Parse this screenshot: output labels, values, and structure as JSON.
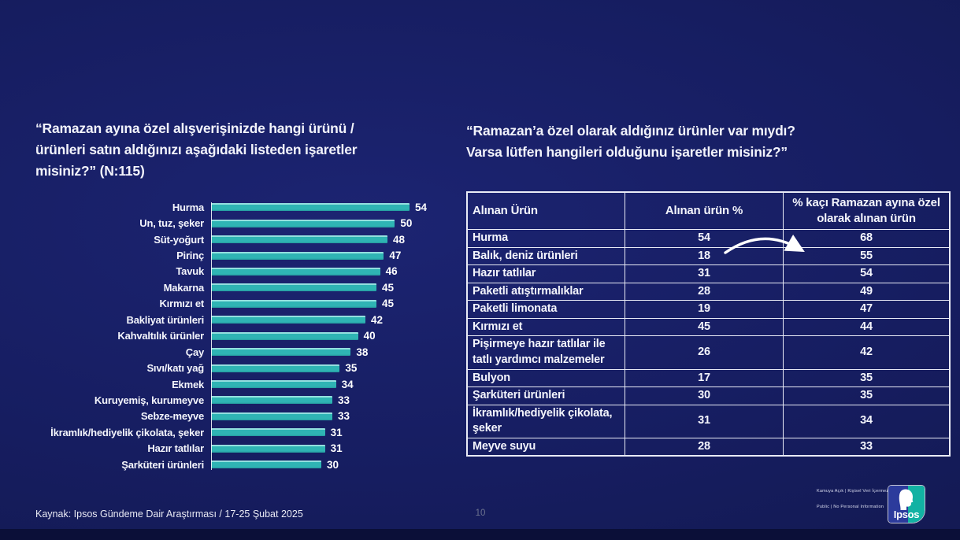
{
  "questions": {
    "left": "“Ramazan ayına özel alışverişinizde hangi ürünü /\nürünleri satın aldığınızı aşağıdaki listeden işaretler\nmisiniz?” (N:115)",
    "right": "“Ramazan’a özel olarak aldığınız ürünler var mıydı?\nVarsa lütfen hangileri olduğunu işaretler misiniz?”"
  },
  "chart_data": [
    {
      "type": "bar",
      "orientation": "horizontal",
      "categories": [
        "Hurma",
        "Un, tuz, şeker",
        "Süt-yoğurt",
        "Pirinç",
        "Tavuk",
        "Makarna",
        "Kırmızı et",
        "Bakliyat ürünleri",
        "Kahvaltılık ürünler",
        "Çay",
        "Sıvı/katı yağ",
        "Ekmek",
        "Kuruyemiş, kurumeyve",
        "Sebze-meyve",
        "İkramlık/hediyelik çikolata, şeker",
        "Hazır tatlılar",
        "Şarküteri ürünleri"
      ],
      "values": [
        54,
        50,
        48,
        47,
        46,
        45,
        45,
        42,
        40,
        38,
        35,
        34,
        33,
        33,
        31,
        31,
        30
      ],
      "title": "",
      "xlabel": "",
      "ylabel": "",
      "xlim": [
        0,
        58
      ],
      "grid": false,
      "legend": false,
      "bar_color": "#2fb4b4",
      "value_labels": true
    },
    {
      "type": "table",
      "columns": [
        "Alınan Ürün",
        "Alınan ürün %",
        "% kaçı Ramazan ayına özel olarak alınan ürün"
      ],
      "rows": [
        [
          "Hurma",
          "54",
          "68"
        ],
        [
          "Balık, deniz ürünleri",
          "18",
          "55"
        ],
        [
          "Hazır tatlılar",
          "31",
          "54"
        ],
        [
          "Paketli atıştırmalıklar",
          "28",
          "49"
        ],
        [
          "Paketli limonata",
          "19",
          "47"
        ],
        [
          "Kırmızı et",
          "45",
          "44"
        ],
        [
          "Pişirmeye hazır tatlılar ile tatlı yardımcı malzemeler",
          "26",
          "42"
        ],
        [
          "Bulyon",
          "17",
          "35"
        ],
        [
          "Şarküteri ürünleri",
          "30",
          "35"
        ],
        [
          "İkramlık/hediyelik çikolata, şeker",
          "31",
          "34"
        ],
        [
          "Meyve suyu",
          "28",
          "33"
        ]
      ]
    }
  ],
  "footer": {
    "source": "Kaynak: Ipsos Gündeme Dair Araştırması / 17-25 Şubat 2025",
    "page_number": "10",
    "classification_line1": "Kamuya Açık | Kişisel Veri İçermez",
    "classification_line2": "Public | No Personal Information",
    "logo_text": "Ipsos"
  },
  "colors": {
    "background": "#161d60",
    "bar_teal": "#2fb4b4",
    "table_border": "#e9ebf6",
    "logo_blue": "#2c3b9c",
    "logo_teal": "#12b2a3"
  }
}
